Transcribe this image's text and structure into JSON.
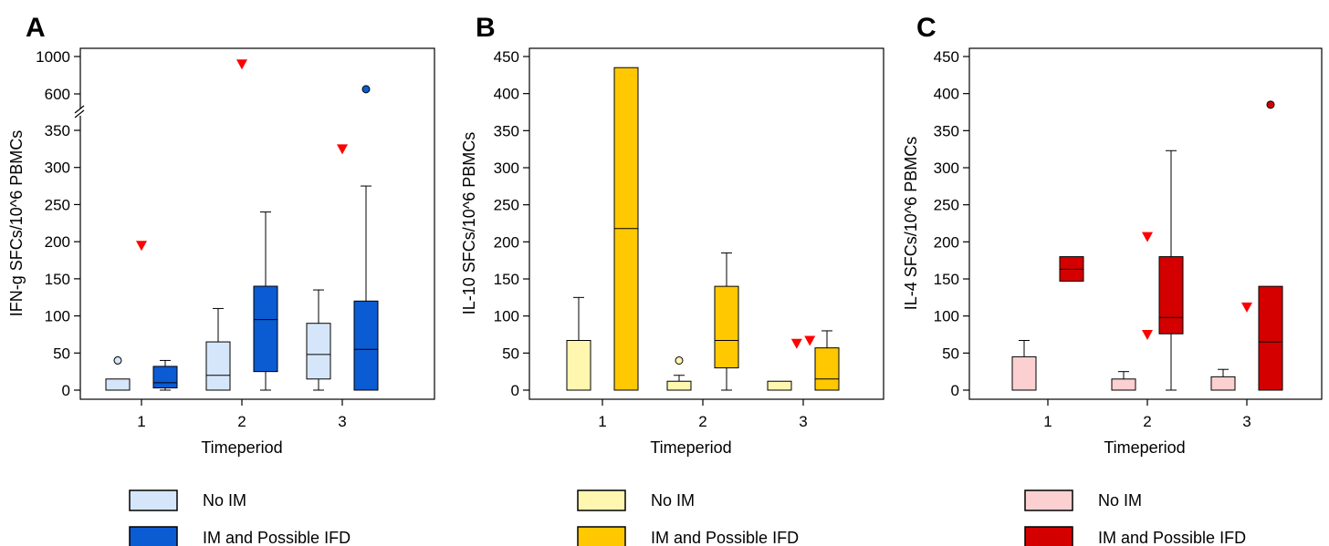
{
  "figure": {
    "outlier_color": "#ff0000"
  },
  "chart_data": [
    {
      "panel": "A",
      "type": "box",
      "xlabel": "Timeperiod",
      "ylabel": "IFN-g SFCs/10^6 PBMCs",
      "categories": [
        "1",
        "2",
        "3"
      ],
      "axis_break": {
        "lower_range": [
          0,
          350
        ],
        "upper_range": [
          600,
          1000
        ]
      },
      "y_ticks": [
        "0",
        "50",
        "100",
        "150",
        "200",
        "250",
        "300",
        "350",
        "600",
        "1000"
      ],
      "colors": {
        "No IM": "#d6e6fa",
        "IM and Possible IFD": "#0b5bd3"
      },
      "series": [
        {
          "name": "No IM",
          "boxes": [
            {
              "category": "1",
              "whisker_low": 0,
              "q1": 0,
              "median": 0,
              "q3": 15,
              "whisker_high": 15
            },
            {
              "category": "2",
              "whisker_low": 0,
              "q1": 0,
              "median": 20,
              "q3": 65,
              "whisker_high": 110
            },
            {
              "category": "3",
              "whisker_low": 0,
              "q1": 15,
              "median": 48,
              "q3": 90,
              "whisker_high": 135
            }
          ]
        },
        {
          "name": "IM and Possible IFD",
          "boxes": [
            {
              "category": "1",
              "whisker_low": 0,
              "q1": 3,
              "median": 10,
              "q3": 32,
              "whisker_high": 40
            },
            {
              "category": "2",
              "whisker_low": 0,
              "q1": 25,
              "median": 95,
              "q3": 140,
              "whisker_high": 240
            },
            {
              "category": "3",
              "whisker_low": 0,
              "q1": 0,
              "median": 55,
              "q3": 120,
              "whisker_high": 275
            }
          ]
        }
      ],
      "outliers": [
        {
          "category": "1",
          "series": "No IM",
          "value": 40,
          "marker": "circle"
        },
        {
          "category": "3",
          "series": "IM and Possible IFD",
          "value": 650,
          "marker": "circle"
        }
      ],
      "extreme_markers": [
        {
          "category": "1",
          "value": 195
        },
        {
          "category": "2",
          "value": 920
        },
        {
          "category": "3",
          "value": 325
        }
      ]
    },
    {
      "panel": "B",
      "type": "box",
      "xlabel": "Timeperiod",
      "ylabel": "IL-10 SFCs/10^6 PBMCs",
      "categories": [
        "1",
        "2",
        "3"
      ],
      "ylim": [
        0,
        450
      ],
      "y_ticks": [
        "0",
        "50",
        "100",
        "150",
        "200",
        "250",
        "300",
        "350",
        "400",
        "450"
      ],
      "colors": {
        "No IM": "#fff6b0",
        "IM and Possible IFD": "#ffc800"
      },
      "series": [
        {
          "name": "No IM",
          "boxes": [
            {
              "category": "1",
              "whisker_low": 0,
              "q1": 0,
              "median": 0,
              "q3": 67,
              "whisker_high": 125
            },
            {
              "category": "2",
              "whisker_low": 0,
              "q1": 0,
              "median": 0,
              "q3": 12,
              "whisker_high": 20
            },
            {
              "category": "3",
              "whisker_low": 0,
              "q1": 0,
              "median": 0,
              "q3": 12,
              "whisker_high": 12
            }
          ]
        },
        {
          "name": "IM and Possible IFD",
          "boxes": [
            {
              "category": "1",
              "whisker_low": 0,
              "q1": 0,
              "median": 218,
              "q3": 435,
              "whisker_high": 435
            },
            {
              "category": "2",
              "whisker_low": 0,
              "q1": 30,
              "median": 67,
              "q3": 140,
              "whisker_high": 185
            },
            {
              "category": "3",
              "whisker_low": 0,
              "q1": 0,
              "median": 15,
              "q3": 57,
              "whisker_high": 80
            }
          ]
        }
      ],
      "outliers": [
        {
          "category": "2",
          "series": "No IM",
          "value": 40,
          "marker": "circle"
        }
      ],
      "extreme_markers": [
        {
          "category": "3",
          "value": 63,
          "offset": -0.6
        },
        {
          "category": "3",
          "value": 67,
          "offset": 0.6
        }
      ]
    },
    {
      "panel": "C",
      "type": "box",
      "xlabel": "Timeperiod",
      "ylabel": "IL-4 SFCs/10^6 PBMCs",
      "categories": [
        "1",
        "2",
        "3"
      ],
      "ylim": [
        0,
        450
      ],
      "y_ticks": [
        "0",
        "50",
        "100",
        "150",
        "200",
        "250",
        "300",
        "350",
        "400",
        "450"
      ],
      "colors": {
        "No IM": "#fcd0d0",
        "IM and Possible IFD": "#d40000"
      },
      "series": [
        {
          "name": "No IM",
          "boxes": [
            {
              "category": "1",
              "whisker_low": 0,
              "q1": 0,
              "median": 0,
              "q3": 45,
              "whisker_high": 67
            },
            {
              "category": "2",
              "whisker_low": 0,
              "q1": 0,
              "median": 0,
              "q3": 15,
              "whisker_high": 25
            },
            {
              "category": "3",
              "whisker_low": 0,
              "q1": 0,
              "median": 0,
              "q3": 18,
              "whisker_high": 28
            }
          ]
        },
        {
          "name": "IM and Possible IFD",
          "boxes": [
            {
              "category": "1",
              "whisker_low": 147,
              "q1": 147,
              "median": 163,
              "q3": 180,
              "whisker_high": 180
            },
            {
              "category": "2",
              "whisker_low": 0,
              "q1": 76,
              "median": 98,
              "q3": 180,
              "whisker_high": 323
            },
            {
              "category": "3",
              "whisker_low": 0,
              "q1": 0,
              "median": 65,
              "q3": 140,
              "whisker_high": 140
            }
          ]
        }
      ],
      "outliers": [
        {
          "category": "3",
          "series": "IM and Possible IFD",
          "value": 385,
          "marker": "circle"
        }
      ],
      "extreme_markers": [
        {
          "category": "2",
          "value": 207
        },
        {
          "category": "2",
          "value": 75
        },
        {
          "category": "3",
          "value": 112
        }
      ]
    }
  ]
}
